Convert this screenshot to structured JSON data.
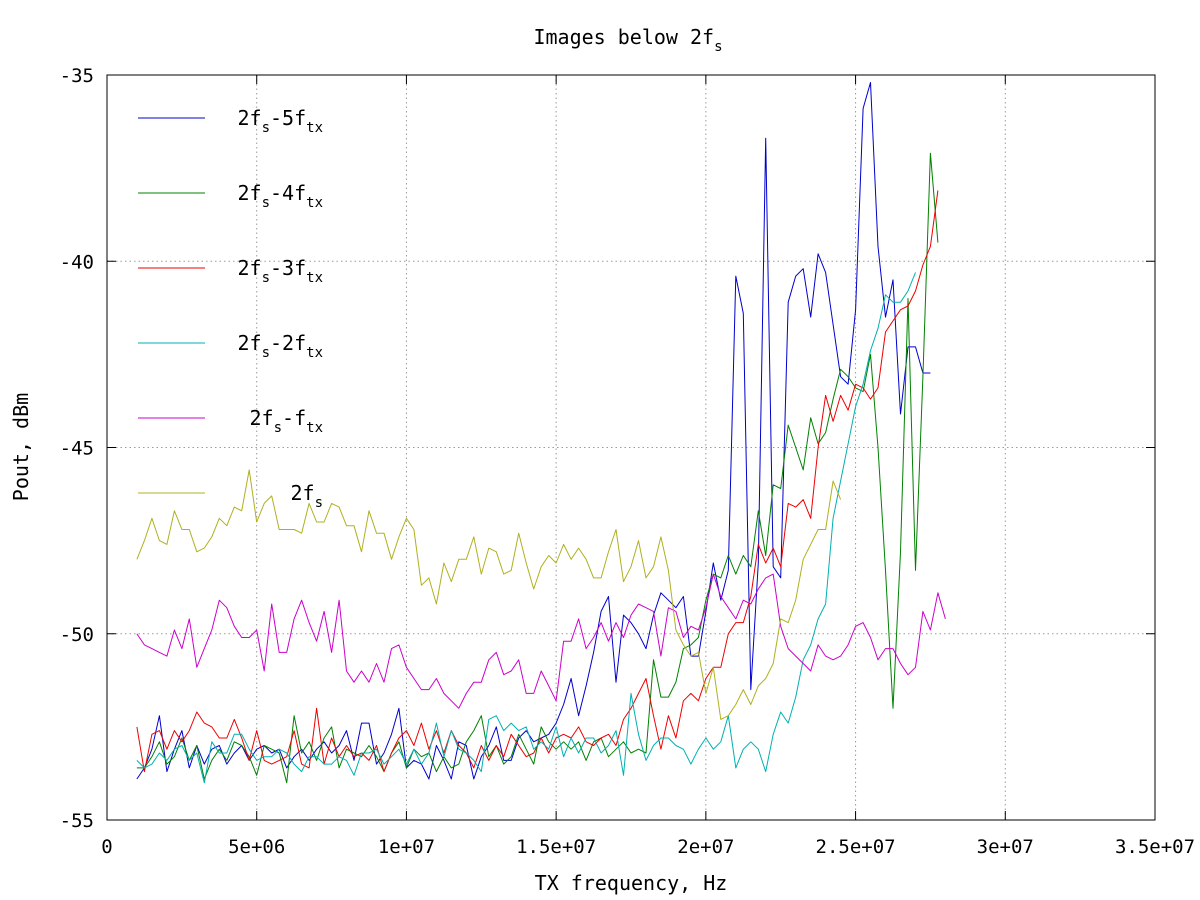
{
  "chart_data": {
    "type": "line",
    "title": "Images below 2f",
    "title_sub": "s",
    "xlabel": "TX frequency, Hz",
    "ylabel": "Pout, dBm",
    "xlim": [
      0,
      35000000
    ],
    "ylim": [
      -55,
      -35
    ],
    "x_ticks": [
      0,
      5000000,
      10000000,
      15000000,
      20000000,
      25000000,
      30000000,
      35000000
    ],
    "x_tick_labels": [
      "0",
      "5e+06",
      "1e+07",
      "1.5e+07",
      "2e+07",
      "2.5e+07",
      "3e+07",
      "3.5e+07"
    ],
    "y_ticks": [
      -35,
      -40,
      -45,
      -50,
      -55
    ],
    "y_tick_labels": [
      "-35",
      "-40",
      "-45",
      "-50",
      "-55"
    ],
    "grid": true,
    "legend_position": "top-left",
    "x_start": 1000000,
    "x_step": 250000,
    "series": [
      {
        "name": "2fs-5ftx",
        "legend": [
          [
            "2f",
            ""
          ],
          [
            "s",
            "sub"
          ],
          [
            "-5f",
            ""
          ],
          [
            "tx",
            "sub"
          ]
        ],
        "color": "#0000cc",
        "values": [
          -53.9,
          -53.6,
          -53.1,
          -52.2,
          -53.7,
          -53.1,
          -52.6,
          -53.6,
          -53.0,
          -53.5,
          -53.1,
          -53.0,
          -53.5,
          -53.2,
          -53.0,
          -53.4,
          -53.1,
          -53.0,
          -53.2,
          -53.1,
          -53.6,
          -53.3,
          -53.1,
          -53.4,
          -53.1,
          -52.9,
          -53.2,
          -53.0,
          -52.6,
          -53.4,
          -52.4,
          -52.4,
          -53.5,
          -53.2,
          -52.7,
          -52.0,
          -53.6,
          -53.4,
          -53.5,
          -53.9,
          -53.0,
          -53.4,
          -53.9,
          -52.9,
          -53.0,
          -53.9,
          -53.3,
          -53.0,
          -52.5,
          -53.4,
          -53.4,
          -52.8,
          -52.6,
          -52.9,
          -52.8,
          -52.7,
          -52.4,
          -51.9,
          -51.2,
          -52.2,
          -51.4,
          -50.5,
          -49.4,
          -49.0,
          -51.3,
          -49.5,
          -49.7,
          -50.0,
          -50.4,
          -49.5,
          -48.9,
          -49.1,
          -49.3,
          -49.0,
          -50.6,
          -50.6,
          -49.4,
          -48.1,
          -49.1,
          -48.3,
          -40.4,
          -41.4,
          -51.5,
          -48.1,
          -36.7,
          -48.2,
          -48.5,
          -41.1,
          -40.4,
          -40.2,
          -41.5,
          -39.8,
          -40.3,
          -41.7,
          -43.1,
          -43.3,
          -41.3,
          -35.9,
          -35.2,
          -39.6,
          -41.5,
          -40.5,
          -44.1,
          -42.3,
          -42.3,
          -43.0,
          -43.0
        ]
      },
      {
        "name": "2fs-4ftx",
        "legend": [
          [
            "2f",
            ""
          ],
          [
            "s",
            "sub"
          ],
          [
            "-4f",
            ""
          ],
          [
            "tx",
            "sub"
          ]
        ],
        "color": "#008000",
        "values": [
          -53.6,
          -53.6,
          -53.3,
          -52.9,
          -53.5,
          -53.3,
          -52.8,
          -53.4,
          -53.0,
          -53.9,
          -53.4,
          -53.1,
          -53.4,
          -52.9,
          -53.0,
          -53.3,
          -53.8,
          -53.0,
          -53.1,
          -53.2,
          -54.0,
          -52.2,
          -53.2,
          -52.9,
          -53.4,
          -52.8,
          -52.5,
          -53.6,
          -53.1,
          -53.2,
          -53.3,
          -53.0,
          -53.3,
          -53.7,
          -53.2,
          -52.9,
          -53.6,
          -53.1,
          -53.3,
          -53.2,
          -53.7,
          -53.3,
          -53.6,
          -53.5,
          -52.9,
          -52.6,
          -52.2,
          -53.3,
          -53.0,
          -53.5,
          -53.3,
          -52.7,
          -53.1,
          -53.5,
          -52.5,
          -52.9,
          -53.1,
          -52.9,
          -53.1,
          -52.9,
          -53.4,
          -52.9,
          -52.8,
          -53.3,
          -53.1,
          -52.9,
          -53.2,
          -53.1,
          -53.2,
          -50.7,
          -51.7,
          -51.7,
          -51.3,
          -50.4,
          -50.3,
          -50.1,
          -49.1,
          -48.4,
          -48.5,
          -47.9,
          -48.4,
          -47.9,
          -48.2,
          -46.7,
          -47.9,
          -46.0,
          -46.1,
          -44.4,
          -45.0,
          -45.6,
          -44.2,
          -44.9,
          -44.6,
          -43.7,
          -42.9,
          -43.1,
          -43.4,
          -43.5,
          -42.5,
          -45.0,
          -48.3,
          -52.0,
          -47.8,
          -41.0,
          -48.3,
          -43.1,
          -37.1,
          -39.5
        ]
      },
      {
        "name": "2fs-3ftx",
        "legend": [
          [
            "2f",
            ""
          ],
          [
            "s",
            "sub"
          ],
          [
            "-3f",
            ""
          ],
          [
            "tx",
            "sub"
          ]
        ],
        "color": "#ee0000",
        "values": [
          -52.5,
          -53.7,
          -52.7,
          -52.6,
          -53.1,
          -52.6,
          -52.9,
          -52.6,
          -52.1,
          -52.4,
          -52.5,
          -52.8,
          -52.8,
          -52.3,
          -52.8,
          -53.4,
          -52.6,
          -53.4,
          -53.5,
          -53.4,
          -53.3,
          -52.6,
          -53.5,
          -53.6,
          -52.0,
          -53.5,
          -52.8,
          -53.3,
          -53.0,
          -53.3,
          -53.2,
          -53.4,
          -53.0,
          -53.7,
          -53.2,
          -52.8,
          -52.6,
          -53.0,
          -52.4,
          -53.1,
          -52.6,
          -53.2,
          -52.6,
          -53.0,
          -53.2,
          -53.6,
          -53.0,
          -53.4,
          -53.0,
          -53.3,
          -52.7,
          -53.0,
          -53.3,
          -53.2,
          -52.8,
          -53.2,
          -52.8,
          -52.7,
          -52.8,
          -52.5,
          -52.9,
          -53.0,
          -52.8,
          -52.7,
          -53.0,
          -52.3,
          -52.0,
          -51.6,
          -51.2,
          -52.2,
          -53.1,
          -52.2,
          -52.8,
          -51.8,
          -51.6,
          -51.8,
          -51.2,
          -50.9,
          -50.9,
          -50.0,
          -49.7,
          -49.7,
          -49.0,
          -47.6,
          -48.1,
          -47.7,
          -48.2,
          -46.5,
          -46.6,
          -46.4,
          -46.9,
          -45.0,
          -43.6,
          -44.3,
          -43.6,
          -44.0,
          -43.3,
          -43.4,
          -43.7,
          -43.4,
          -41.9,
          -41.6,
          -41.3,
          -41.2,
          -40.8,
          -40.1,
          -39.6,
          -38.1
        ]
      },
      {
        "name": "2fs-2ftx",
        "legend": [
          [
            "2f",
            ""
          ],
          [
            "s",
            "sub"
          ],
          [
            "-2f",
            ""
          ],
          [
            "tx",
            "sub"
          ]
        ],
        "color": "#00b0b0",
        "values": [
          -53.4,
          -53.6,
          -53.5,
          -53.2,
          -53.4,
          -53.1,
          -53.0,
          -53.4,
          -53.2,
          -54.0,
          -52.9,
          -53.2,
          -53.2,
          -52.7,
          -52.7,
          -53.1,
          -53.4,
          -53.3,
          -53.3,
          -53.1,
          -53.2,
          -53.5,
          -53.7,
          -53.3,
          -53.3,
          -53.5,
          -53.5,
          -53.3,
          -53.4,
          -53.8,
          -53.2,
          -53.2,
          -53.1,
          -53.5,
          -53.3,
          -53.1,
          -53.5,
          -53.1,
          -53.5,
          -53.2,
          -52.4,
          -53.3,
          -52.6,
          -53.1,
          -53.2,
          -53.4,
          -53.7,
          -52.3,
          -52.2,
          -52.6,
          -52.4,
          -52.6,
          -52.5,
          -53.1,
          -52.9,
          -53.1,
          -52.5,
          -53.3,
          -52.8,
          -53.2,
          -52.8,
          -52.8,
          -53.2,
          -53.0,
          -52.6,
          -53.8,
          -51.6,
          -52.7,
          -53.4,
          -53.0,
          -52.8,
          -52.8,
          -53.0,
          -53.1,
          -53.5,
          -53.1,
          -52.8,
          -53.1,
          -52.9,
          -52.2,
          -53.6,
          -53.1,
          -52.9,
          -53.1,
          -53.7,
          -52.7,
          -52.1,
          -52.4,
          -51.7,
          -50.7,
          -50.3,
          -49.6,
          -49.2,
          -46.9,
          -45.9,
          -44.9,
          -43.9,
          -43.3,
          -42.4,
          -41.8,
          -40.9,
          -41.1,
          -41.1,
          -40.8,
          -40.3
        ]
      },
      {
        "name": "2fs-ftx",
        "legend": [
          [
            "2f",
            ""
          ],
          [
            "s",
            "sub"
          ],
          [
            "-f",
            ""
          ],
          [
            "tx",
            "sub"
          ]
        ],
        "color": "#cc00cc",
        "values": [
          -50.0,
          -50.3,
          -50.4,
          -50.5,
          -50.6,
          -49.9,
          -50.4,
          -49.6,
          -50.9,
          -50.4,
          -49.9,
          -49.1,
          -49.3,
          -49.8,
          -50.1,
          -50.1,
          -49.9,
          -51.0,
          -49.2,
          -50.5,
          -50.5,
          -49.6,
          -49.1,
          -49.7,
          -50.2,
          -49.4,
          -50.5,
          -49.1,
          -51.0,
          -51.3,
          -51.0,
          -51.3,
          -50.8,
          -51.3,
          -50.4,
          -50.3,
          -50.9,
          -51.2,
          -51.5,
          -51.5,
          -51.2,
          -51.6,
          -51.8,
          -52.0,
          -51.6,
          -51.3,
          -51.3,
          -50.7,
          -50.5,
          -51.1,
          -51.0,
          -50.7,
          -51.6,
          -51.6,
          -51.0,
          -51.4,
          -51.8,
          -50.2,
          -50.2,
          -49.6,
          -50.4,
          -50.1,
          -49.7,
          -50.2,
          -49.7,
          -50.1,
          -49.5,
          -49.2,
          -49.3,
          -49.4,
          -50.6,
          -49.3,
          -49.4,
          -50.1,
          -49.8,
          -49.9,
          -49.3,
          -48.4,
          -49.0,
          -49.3,
          -49.6,
          -49.1,
          -49.2,
          -48.8,
          -48.5,
          -48.4,
          -49.8,
          -50.4,
          -50.6,
          -50.8,
          -51.0,
          -50.3,
          -50.6,
          -50.7,
          -50.6,
          -50.3,
          -49.8,
          -49.7,
          -50.1,
          -50.7,
          -50.4,
          -50.4,
          -50.8,
          -51.1,
          -50.9,
          -49.4,
          -49.9,
          -48.9,
          -49.6
        ]
      },
      {
        "name": "2fs",
        "legend": [
          [
            "2f",
            ""
          ],
          [
            "s",
            "sub"
          ]
        ],
        "color": "#b0b020",
        "values": [
          -48.0,
          -47.5,
          -46.9,
          -47.5,
          -47.6,
          -46.7,
          -47.2,
          -47.2,
          -47.8,
          -47.7,
          -47.4,
          -46.9,
          -47.1,
          -46.6,
          -46.7,
          -45.6,
          -47.0,
          -46.5,
          -46.3,
          -47.2,
          -47.2,
          -47.2,
          -47.3,
          -46.5,
          -47.0,
          -47.0,
          -46.5,
          -46.6,
          -47.1,
          -47.1,
          -47.8,
          -46.7,
          -47.3,
          -47.3,
          -48.0,
          -47.4,
          -46.9,
          -47.2,
          -48.7,
          -48.5,
          -49.2,
          -48.1,
          -48.6,
          -48.0,
          -48.0,
          -47.4,
          -48.4,
          -47.7,
          -47.8,
          -48.4,
          -48.3,
          -47.3,
          -48.1,
          -48.8,
          -48.2,
          -47.9,
          -48.1,
          -47.6,
          -48.0,
          -47.7,
          -48.0,
          -48.5,
          -48.5,
          -47.8,
          -47.2,
          -48.6,
          -48.2,
          -47.5,
          -48.5,
          -48.2,
          -47.4,
          -48.3,
          -49.9,
          -50.3,
          -50.6,
          -50.5,
          -51.6,
          -50.9,
          -52.3,
          -52.2,
          -51.9,
          -51.5,
          -51.9,
          -51.4,
          -51.2,
          -50.8,
          -49.6,
          -49.7,
          -49.1,
          -48.0,
          -47.6,
          -47.2,
          -47.2,
          -45.9,
          -46.4
        ]
      }
    ]
  }
}
